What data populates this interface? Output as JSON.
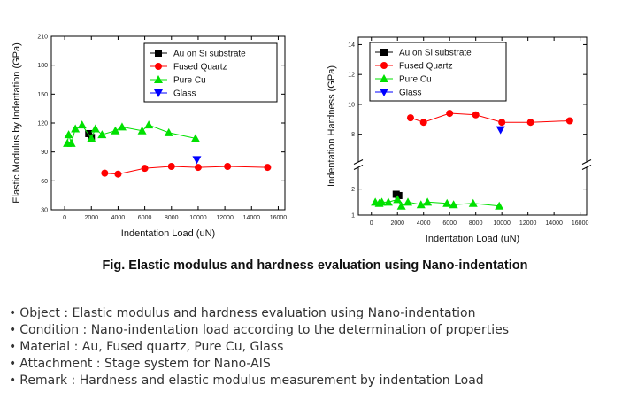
{
  "caption": "Fig. Elastic modulus and hardness evaluation using Nano-indentation",
  "info_items": [
    {
      "label": "Object",
      "text": "Elastic modulus and hardness evaluation using Nano-indentation"
    },
    {
      "label": "Condition",
      "text": "Nano-indentation load  according to the determination of properties"
    },
    {
      "label": "Material",
      "text": "Au, Fused quartz, Pure Cu, Glass"
    },
    {
      "label": "Attachment",
      "text": "Stage system for Nano-AIS"
    },
    {
      "label": "Remark",
      "text": "Hardness and elastic modulus measurement by indentation Load"
    }
  ],
  "colors": {
    "au": "#000000",
    "quartz": "#ff0000",
    "cu": "#00e000",
    "glass": "#0000ff"
  },
  "chart_data": [
    {
      "type": "scatter",
      "title": "",
      "xlabel": "Indentation Load (uN)",
      "ylabel": "Elastic Modulus by Indentation (GPa)",
      "xlim": [
        -1000,
        16500
      ],
      "ylim": [
        30,
        210
      ],
      "xticks": [
        0,
        2000,
        4000,
        6000,
        8000,
        10000,
        12000,
        14000,
        16000
      ],
      "yticks": [
        30,
        60,
        90,
        120,
        150,
        180,
        210
      ],
      "legend_position": "top-right",
      "series": [
        {
          "name": "Au on Si substrate",
          "marker": "square",
          "color": "#000000",
          "connected": false,
          "x": [
            1800,
            2000
          ],
          "y": [
            109,
            105
          ]
        },
        {
          "name": "Fused Quartz",
          "marker": "circle",
          "color": "#ff0000",
          "connected": true,
          "x": [
            3000,
            4000,
            6000,
            8000,
            10000,
            12200,
            15200
          ],
          "y": [
            68,
            67,
            73,
            75,
            74,
            75,
            74
          ]
        },
        {
          "name": "Pure Cu",
          "marker": "triangle-up",
          "color": "#00e000",
          "connected": true,
          "x": [
            200,
            300,
            500,
            800,
            1300,
            2000,
            2300,
            2800,
            3800,
            4300,
            5800,
            6300,
            7800,
            9800
          ],
          "y": [
            99,
            108,
            99,
            114,
            118,
            104,
            114,
            108,
            112,
            116,
            112,
            118,
            110,
            104
          ]
        },
        {
          "name": "Glass",
          "marker": "triangle-down",
          "color": "#0000ff",
          "connected": false,
          "x": [
            9900
          ],
          "y": [
            82
          ]
        }
      ]
    },
    {
      "type": "scatter",
      "title": "",
      "xlabel": "Indentation Load (uN)",
      "ylabel": "Indentation Hardness (GPa)",
      "xlim": [
        -1000,
        16500
      ],
      "ylim": [
        1,
        14.5
      ],
      "broken_y_axis": {
        "lower": [
          1,
          2.6
        ],
        "upper": [
          6.5,
          14.5
        ]
      },
      "xticks": [
        0,
        2000,
        4000,
        6000,
        8000,
        10000,
        12000,
        14000,
        16000
      ],
      "yticks": [
        1,
        2,
        8,
        10,
        12,
        14
      ],
      "legend_position": "top-right",
      "series": [
        {
          "name": "Au on Si substrate",
          "marker": "square",
          "color": "#000000",
          "connected": false,
          "x": [
            1900,
            2100
          ],
          "y": [
            1.8,
            1.75
          ]
        },
        {
          "name": "Fused Quartz",
          "marker": "circle",
          "color": "#ff0000",
          "connected": true,
          "x": [
            3000,
            4000,
            6000,
            8000,
            10000,
            12200,
            15200
          ],
          "y": [
            9.1,
            8.8,
            9.4,
            9.3,
            8.8,
            8.8,
            8.9
          ]
        },
        {
          "name": "Pure Cu",
          "marker": "triangle-up",
          "color": "#00e000",
          "connected": true,
          "x": [
            300,
            600,
            800,
            1300,
            2000,
            2300,
            2800,
            3800,
            4300,
            5800,
            6300,
            7800,
            9800
          ],
          "y": [
            1.5,
            1.45,
            1.5,
            1.5,
            1.6,
            1.35,
            1.5,
            1.4,
            1.5,
            1.45,
            1.4,
            1.45,
            1.35
          ]
        },
        {
          "name": "Glass",
          "marker": "triangle-down",
          "color": "#0000ff",
          "connected": false,
          "x": [
            9900
          ],
          "y": [
            8.3
          ]
        }
      ]
    }
  ]
}
